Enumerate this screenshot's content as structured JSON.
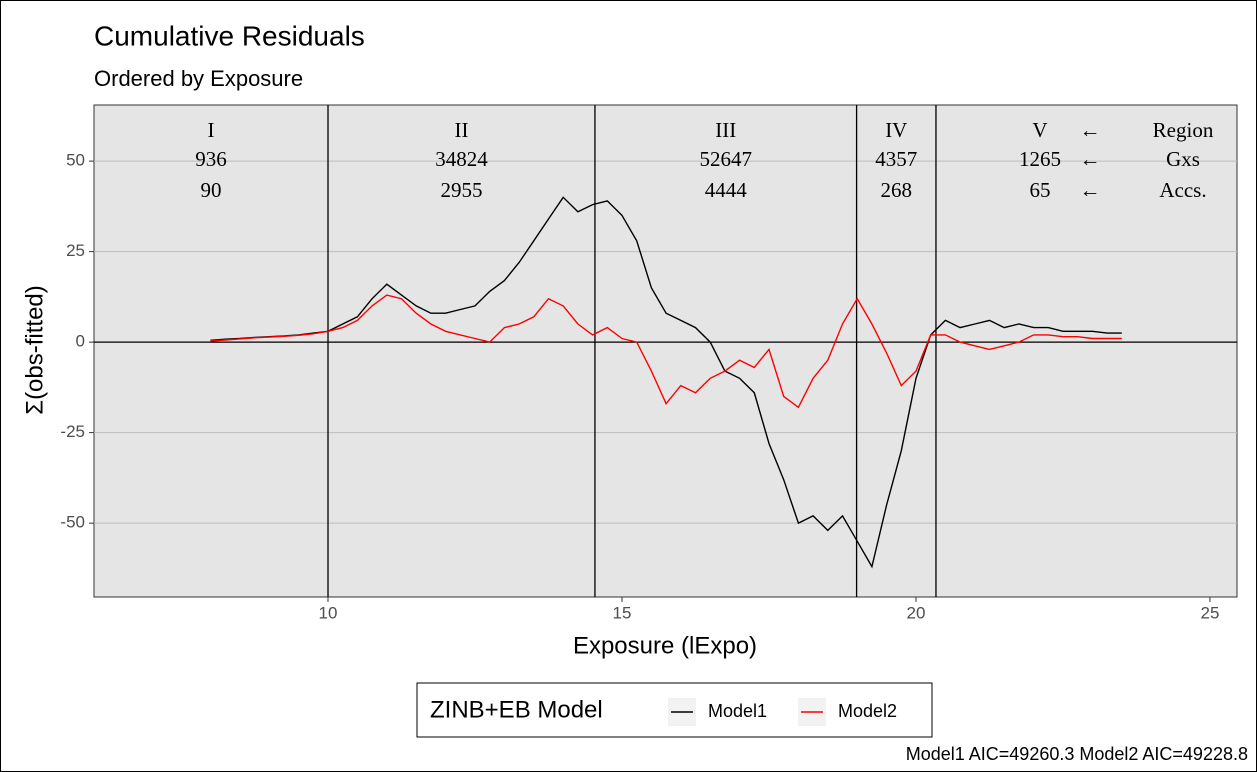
{
  "chart_data": {
    "type": "line",
    "title": "Cumulative Residuals",
    "subtitle": "Ordered by Exposure",
    "x_label": "Exposure (lExpo)",
    "y_label": "Σ(obs-fitted)",
    "caption": "Model1 AIC=49260.3  Model2 AIC=49228.8",
    "legend_title": "ZINB+EB Model",
    "xlim": [
      6.02,
      25.46
    ],
    "ylim": [
      -70.4,
      65.5
    ],
    "xticks": [
      10,
      15,
      20,
      25
    ],
    "yticks": [
      -50,
      -25,
      0,
      25,
      50
    ],
    "grid": true,
    "hline": 0,
    "boundaries": [
      10,
      14.54,
      18.99,
      20.34
    ],
    "regions": [
      {
        "label": "I",
        "gxs": "936",
        "accs": "90"
      },
      {
        "label": "II",
        "gxs": "34824",
        "accs": "2955"
      },
      {
        "label": "III",
        "gxs": "52647",
        "accs": "4444"
      },
      {
        "label": "IV",
        "gxs": "4357",
        "accs": "268"
      },
      {
        "label": "V",
        "gxs": "1265",
        "accs": "65"
      }
    ],
    "arrow": "←",
    "row_labels": [
      "Region",
      "Gxs",
      "Accs."
    ],
    "x": [
      8,
      8.25,
      8.5,
      8.75,
      9,
      9.25,
      9.5,
      9.75,
      10,
      10.25,
      10.5,
      10.75,
      11,
      11.25,
      11.5,
      11.75,
      12,
      12.25,
      12.5,
      12.75,
      13,
      13.25,
      13.5,
      13.75,
      14,
      14.25,
      14.5,
      14.75,
      15,
      15.25,
      15.5,
      15.75,
      16,
      16.25,
      16.5,
      16.75,
      17,
      17.25,
      17.5,
      17.75,
      18,
      18.25,
      18.5,
      18.75,
      19,
      19.25,
      19.5,
      19.75,
      20,
      20.25,
      20.5,
      20.75,
      21,
      21.25,
      21.5,
      21.75,
      22,
      22.25,
      22.5,
      22.75,
      23,
      23.25,
      23.5
    ],
    "series": [
      {
        "name": "Model1",
        "color": "#000000",
        "values": [
          0.5,
          0.8,
          1,
          1.3,
          1.5,
          1.7,
          2,
          2.5,
          3,
          5,
          7,
          12,
          16,
          13,
          10,
          8,
          8,
          9,
          10,
          14,
          17,
          22,
          28,
          34,
          40,
          36,
          38,
          39,
          35,
          28,
          15,
          8,
          6,
          4,
          0,
          -8,
          -10,
          -14,
          -28,
          -38,
          -50,
          -48,
          -52,
          -48,
          -55,
          -62,
          -45,
          -30,
          -10,
          2,
          6,
          4,
          5,
          6,
          4,
          5,
          4,
          4,
          3,
          3,
          3,
          2.5,
          2.5
        ]
      },
      {
        "name": "Model2",
        "color": "#ff0000",
        "values": [
          0.3,
          0.6,
          0.9,
          1.2,
          1.4,
          1.6,
          1.9,
          2.3,
          3,
          4,
          6,
          10,
          13,
          12,
          8,
          5,
          3,
          2,
          1,
          0,
          4,
          5,
          7,
          12,
          10,
          5,
          2,
          4,
          1,
          0,
          -8,
          -17,
          -12,
          -14,
          -10,
          -8,
          -5,
          -7,
          -2,
          -15,
          -18,
          -10,
          -5,
          5,
          12,
          5,
          -3,
          -12,
          -8,
          2,
          2,
          0,
          -1,
          -2,
          -1,
          0,
          2,
          2,
          1.5,
          1.5,
          1,
          1,
          1
        ]
      }
    ]
  }
}
